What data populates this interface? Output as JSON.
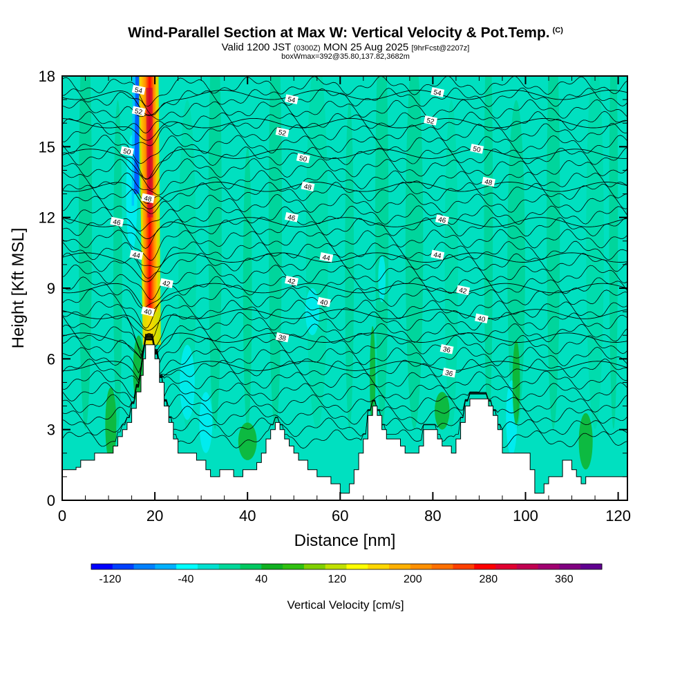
{
  "header": {
    "title": "Wind-Parallel Section at Max W: Vertical Velocity & Pot.Temp.",
    "title_mark": "(C)",
    "valid_prefix": "Valid 1200 JST",
    "valid_utc": "(0300Z)",
    "valid_date": "MON 25 Aug 2025",
    "forecast": "[9hrFcst@2207z]",
    "box_line": "boxWmax=392@35.80,137.82,3682m"
  },
  "chart_data": {
    "type": "heatmap",
    "title": "Wind-Parallel Section at Max W: Vertical Velocity & Pot.Temp.",
    "xlabel": "Distance [nm]",
    "ylabel": "Height [Kft MSL]",
    "xlim": [
      0,
      122
    ],
    "ylim": [
      0,
      18
    ],
    "x_ticks": [
      0,
      20,
      40,
      60,
      80,
      100,
      120
    ],
    "y_ticks": [
      0,
      3,
      6,
      9,
      12,
      15,
      18
    ],
    "x_tick_labels": [
      "0",
      "20",
      "40",
      "60",
      "80",
      "100",
      "120"
    ],
    "y_tick_labels": [
      "0",
      "3",
      "6",
      "9",
      "12",
      "15",
      "18"
    ],
    "colorbar": {
      "title": "Vertical Velocity [cm/s]",
      "min": -140,
      "max": 400,
      "step": 20,
      "tick_values": [
        -120,
        -40,
        40,
        120,
        200,
        280,
        360
      ],
      "tick_labels": [
        "-120",
        "-40",
        "40",
        "120",
        "200",
        "280",
        "360"
      ],
      "colors": [
        "#0000ff",
        "#0040ff",
        "#0080ff",
        "#00b0ff",
        "#00ffff",
        "#00e0d0",
        "#00d89a",
        "#00c860",
        "#10b020",
        "#30c010",
        "#80d000",
        "#c0e000",
        "#ffff00",
        "#ffd700",
        "#ffb000",
        "#ff9000",
        "#ff7000",
        "#ff4000",
        "#ff0000",
        "#e00030",
        "#c00050",
        "#a00070",
        "#800080",
        "#600090"
      ]
    },
    "terrain_heights_kft": [
      [
        0,
        1.3
      ],
      [
        1,
        1.3
      ],
      [
        2,
        1.3
      ],
      [
        3,
        1.4
      ],
      [
        4,
        1.7
      ],
      [
        6,
        1.7
      ],
      [
        7,
        2.0
      ],
      [
        10,
        2.0
      ],
      [
        11,
        2.3
      ],
      [
        12,
        2.7
      ],
      [
        13,
        3.0
      ],
      [
        14,
        3.3
      ],
      [
        15,
        3.9
      ],
      [
        16,
        4.6
      ],
      [
        17,
        5.3
      ],
      [
        17.5,
        6.0
      ],
      [
        18,
        6.6
      ],
      [
        19,
        6.6
      ],
      [
        20,
        6.0
      ],
      [
        21,
        5.0
      ],
      [
        22,
        4.0
      ],
      [
        23,
        3.3
      ],
      [
        24,
        2.6
      ],
      [
        25,
        2.0
      ],
      [
        28,
        2.0
      ],
      [
        29,
        1.7
      ],
      [
        31,
        1.3
      ],
      [
        32,
        1.0
      ],
      [
        33,
        1.0
      ],
      [
        34,
        1.3
      ],
      [
        36,
        1.3
      ],
      [
        37,
        1.0
      ],
      [
        38,
        1.0
      ],
      [
        39,
        1.3
      ],
      [
        41,
        1.3
      ],
      [
        42,
        1.6
      ],
      [
        43,
        2.0
      ],
      [
        44,
        2.6
      ],
      [
        45,
        3.0
      ],
      [
        46,
        3.3
      ],
      [
        47,
        3.0
      ],
      [
        48,
        2.6
      ],
      [
        49,
        2.3
      ],
      [
        50,
        2.0
      ],
      [
        51,
        1.7
      ],
      [
        52,
        1.7
      ],
      [
        53,
        1.3
      ],
      [
        54,
        1.3
      ],
      [
        55,
        1.0
      ],
      [
        56,
        1.0
      ],
      [
        58,
        0.7
      ],
      [
        60,
        0.3
      ],
      [
        61,
        0.3
      ],
      [
        62,
        0.7
      ],
      [
        63,
        1.3
      ],
      [
        64,
        2.0
      ],
      [
        65,
        2.6
      ],
      [
        66,
        3.6
      ],
      [
        67,
        4.0
      ],
      [
        68,
        3.6
      ],
      [
        69,
        3.0
      ],
      [
        70,
        2.6
      ],
      [
        71,
        2.6
      ],
      [
        72,
        2.6
      ],
      [
        73,
        2.3
      ],
      [
        74,
        2.0
      ],
      [
        76,
        2.0
      ],
      [
        77,
        2.3
      ],
      [
        78,
        3.0
      ],
      [
        80,
        3.0
      ],
      [
        81,
        2.6
      ],
      [
        82,
        2.3
      ],
      [
        84,
        2.0
      ],
      [
        85,
        2.6
      ],
      [
        86,
        3.3
      ],
      [
        87,
        4.0
      ],
      [
        88,
        4.3
      ],
      [
        91,
        4.3
      ],
      [
        92,
        4.0
      ],
      [
        93,
        3.6
      ],
      [
        94,
        3.0
      ],
      [
        95,
        2.0
      ],
      [
        100,
        2.0
      ],
      [
        101,
        1.3
      ],
      [
        102,
        0.3
      ],
      [
        104,
        0.7
      ],
      [
        105,
        1.0
      ],
      [
        107,
        1.0
      ],
      [
        108,
        1.7
      ],
      [
        109,
        1.7
      ],
      [
        110,
        1.3
      ],
      [
        111,
        1.0
      ],
      [
        112,
        0.7
      ],
      [
        113,
        1.0
      ],
      [
        115,
        1.0
      ],
      [
        116,
        1.0
      ],
      [
        117,
        1.0
      ],
      [
        118,
        1.0
      ],
      [
        120,
        1.0
      ],
      [
        122,
        1.0
      ]
    ],
    "theta_contours_C": [
      36,
      38,
      40,
      42,
      44,
      46,
      48,
      50,
      52,
      54
    ],
    "theta_labels": [
      {
        "text": "54",
        "x": 16.5,
        "y": 17.4
      },
      {
        "text": "54",
        "x": 49.5,
        "y": 17.0
      },
      {
        "text": "54",
        "x": 81.0,
        "y": 17.3
      },
      {
        "text": "52",
        "x": 16.5,
        "y": 16.5
      },
      {
        "text": "52",
        "x": 47.5,
        "y": 15.6
      },
      {
        "text": "52",
        "x": 79.5,
        "y": 16.1
      },
      {
        "text": "50",
        "x": 14.0,
        "y": 14.8
      },
      {
        "text": "50",
        "x": 52.0,
        "y": 14.5
      },
      {
        "text": "50",
        "x": 89.5,
        "y": 14.9
      },
      {
        "text": "48",
        "x": 18.5,
        "y": 12.8
      },
      {
        "text": "48",
        "x": 53.0,
        "y": 13.3
      },
      {
        "text": "48",
        "x": 92.0,
        "y": 13.5
      },
      {
        "text": "46",
        "x": 11.8,
        "y": 11.8
      },
      {
        "text": "46",
        "x": 49.5,
        "y": 12.0
      },
      {
        "text": "46",
        "x": 82.0,
        "y": 11.9
      },
      {
        "text": "44",
        "x": 16.0,
        "y": 10.4
      },
      {
        "text": "44",
        "x": 57.0,
        "y": 10.3
      },
      {
        "text": "44",
        "x": 81.0,
        "y": 10.4
      },
      {
        "text": "42",
        "x": 22.5,
        "y": 9.2
      },
      {
        "text": "42",
        "x": 49.5,
        "y": 9.3
      },
      {
        "text": "42",
        "x": 86.5,
        "y": 8.9
      },
      {
        "text": "40",
        "x": 18.5,
        "y": 8.0
      },
      {
        "text": "40",
        "x": 56.5,
        "y": 8.4
      },
      {
        "text": "40",
        "x": 90.5,
        "y": 7.7
      },
      {
        "text": "38",
        "x": 47.5,
        "y": 6.9
      },
      {
        "text": "36",
        "x": 83.0,
        "y": 6.4
      },
      {
        "text": "36",
        "x": 83.5,
        "y": 5.4
      }
    ],
    "features": [
      {
        "name": "updraft-plume",
        "x_range": [
          16,
          21
        ],
        "y_range": [
          6.6,
          18
        ],
        "max_value": 392
      },
      {
        "name": "downdraft-core",
        "x_range": [
          15.5,
          16.5
        ],
        "y_range": [
          13,
          18
        ],
        "min_value": -120
      }
    ]
  }
}
